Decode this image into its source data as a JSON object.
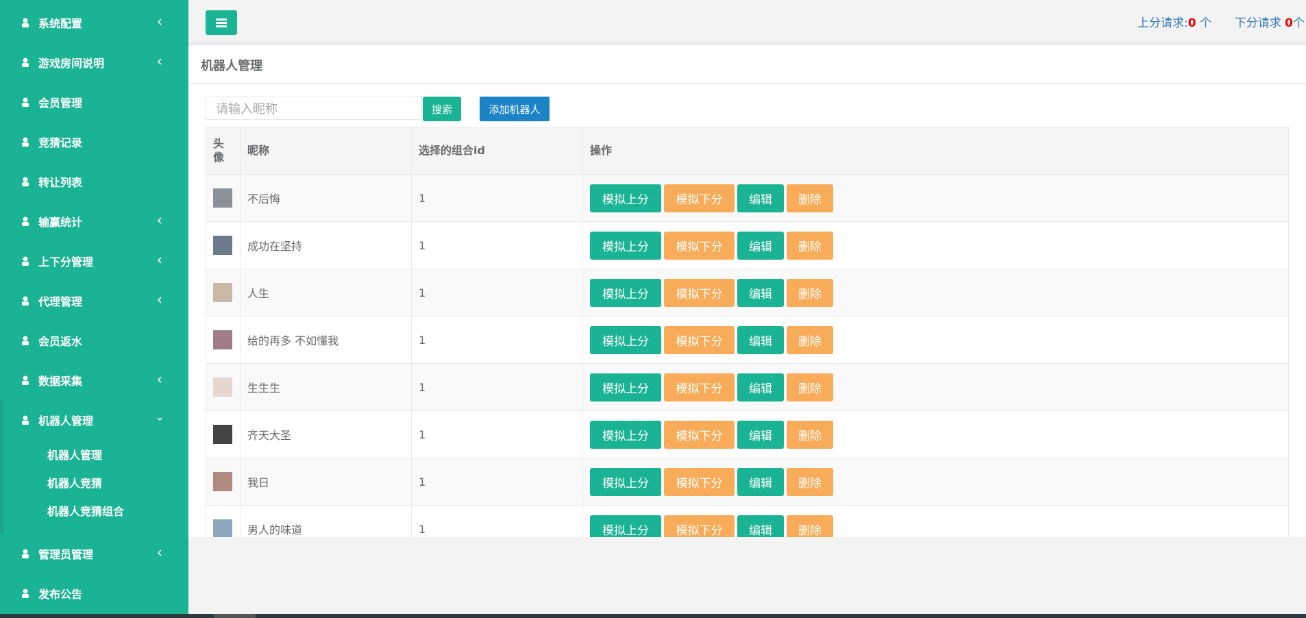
{
  "sidebar": {
    "items": [
      {
        "label": "系统配置",
        "expandable": true
      },
      {
        "label": "游戏房间说明",
        "expandable": true
      },
      {
        "label": "会员管理",
        "expandable": false
      },
      {
        "label": "竞猜记录",
        "expandable": false
      },
      {
        "label": "转让列表",
        "expandable": false
      },
      {
        "label": "输赢统计",
        "expandable": true
      },
      {
        "label": "上下分管理",
        "expandable": true
      },
      {
        "label": "代理管理",
        "expandable": true
      },
      {
        "label": "会员返水",
        "expandable": false
      },
      {
        "label": "数据采集",
        "expandable": true
      },
      {
        "label": "机器人管理",
        "expandable": true,
        "children": [
          "机器人管理",
          "机器人竞猜",
          "机器人竞猜组合"
        ]
      },
      {
        "label": "管理员管理",
        "expandable": true
      },
      {
        "label": "发布公告",
        "expandable": false
      }
    ]
  },
  "topbar": {
    "up_label": "上分请求:",
    "up_count": "0",
    "up_unit": "个",
    "down_label": "下分请求",
    "down_count": "0",
    "down_unit": "个"
  },
  "panel": {
    "title": "机器人管理",
    "search_placeholder": "请输入昵称",
    "search_button": "搜索",
    "add_button": "添加机器人"
  },
  "table": {
    "headers": [
      "头像",
      "昵称",
      "选择的组合id",
      "操作"
    ],
    "buttons": [
      "模拟上分",
      "模拟下分",
      "编辑",
      "删除"
    ],
    "rows": [
      {
        "nickname": "不后悔",
        "group_id": "1"
      },
      {
        "nickname": "成功在坚持",
        "group_id": "1"
      },
      {
        "nickname": "人生",
        "group_id": "1"
      },
      {
        "nickname": "给的再多 不如懂我",
        "group_id": "1"
      },
      {
        "nickname": "生生生",
        "group_id": "1"
      },
      {
        "nickname": "齐天大圣",
        "group_id": "1"
      },
      {
        "nickname": "我日",
        "group_id": "1"
      },
      {
        "nickname": "男人的味道",
        "group_id": "1"
      }
    ]
  }
}
